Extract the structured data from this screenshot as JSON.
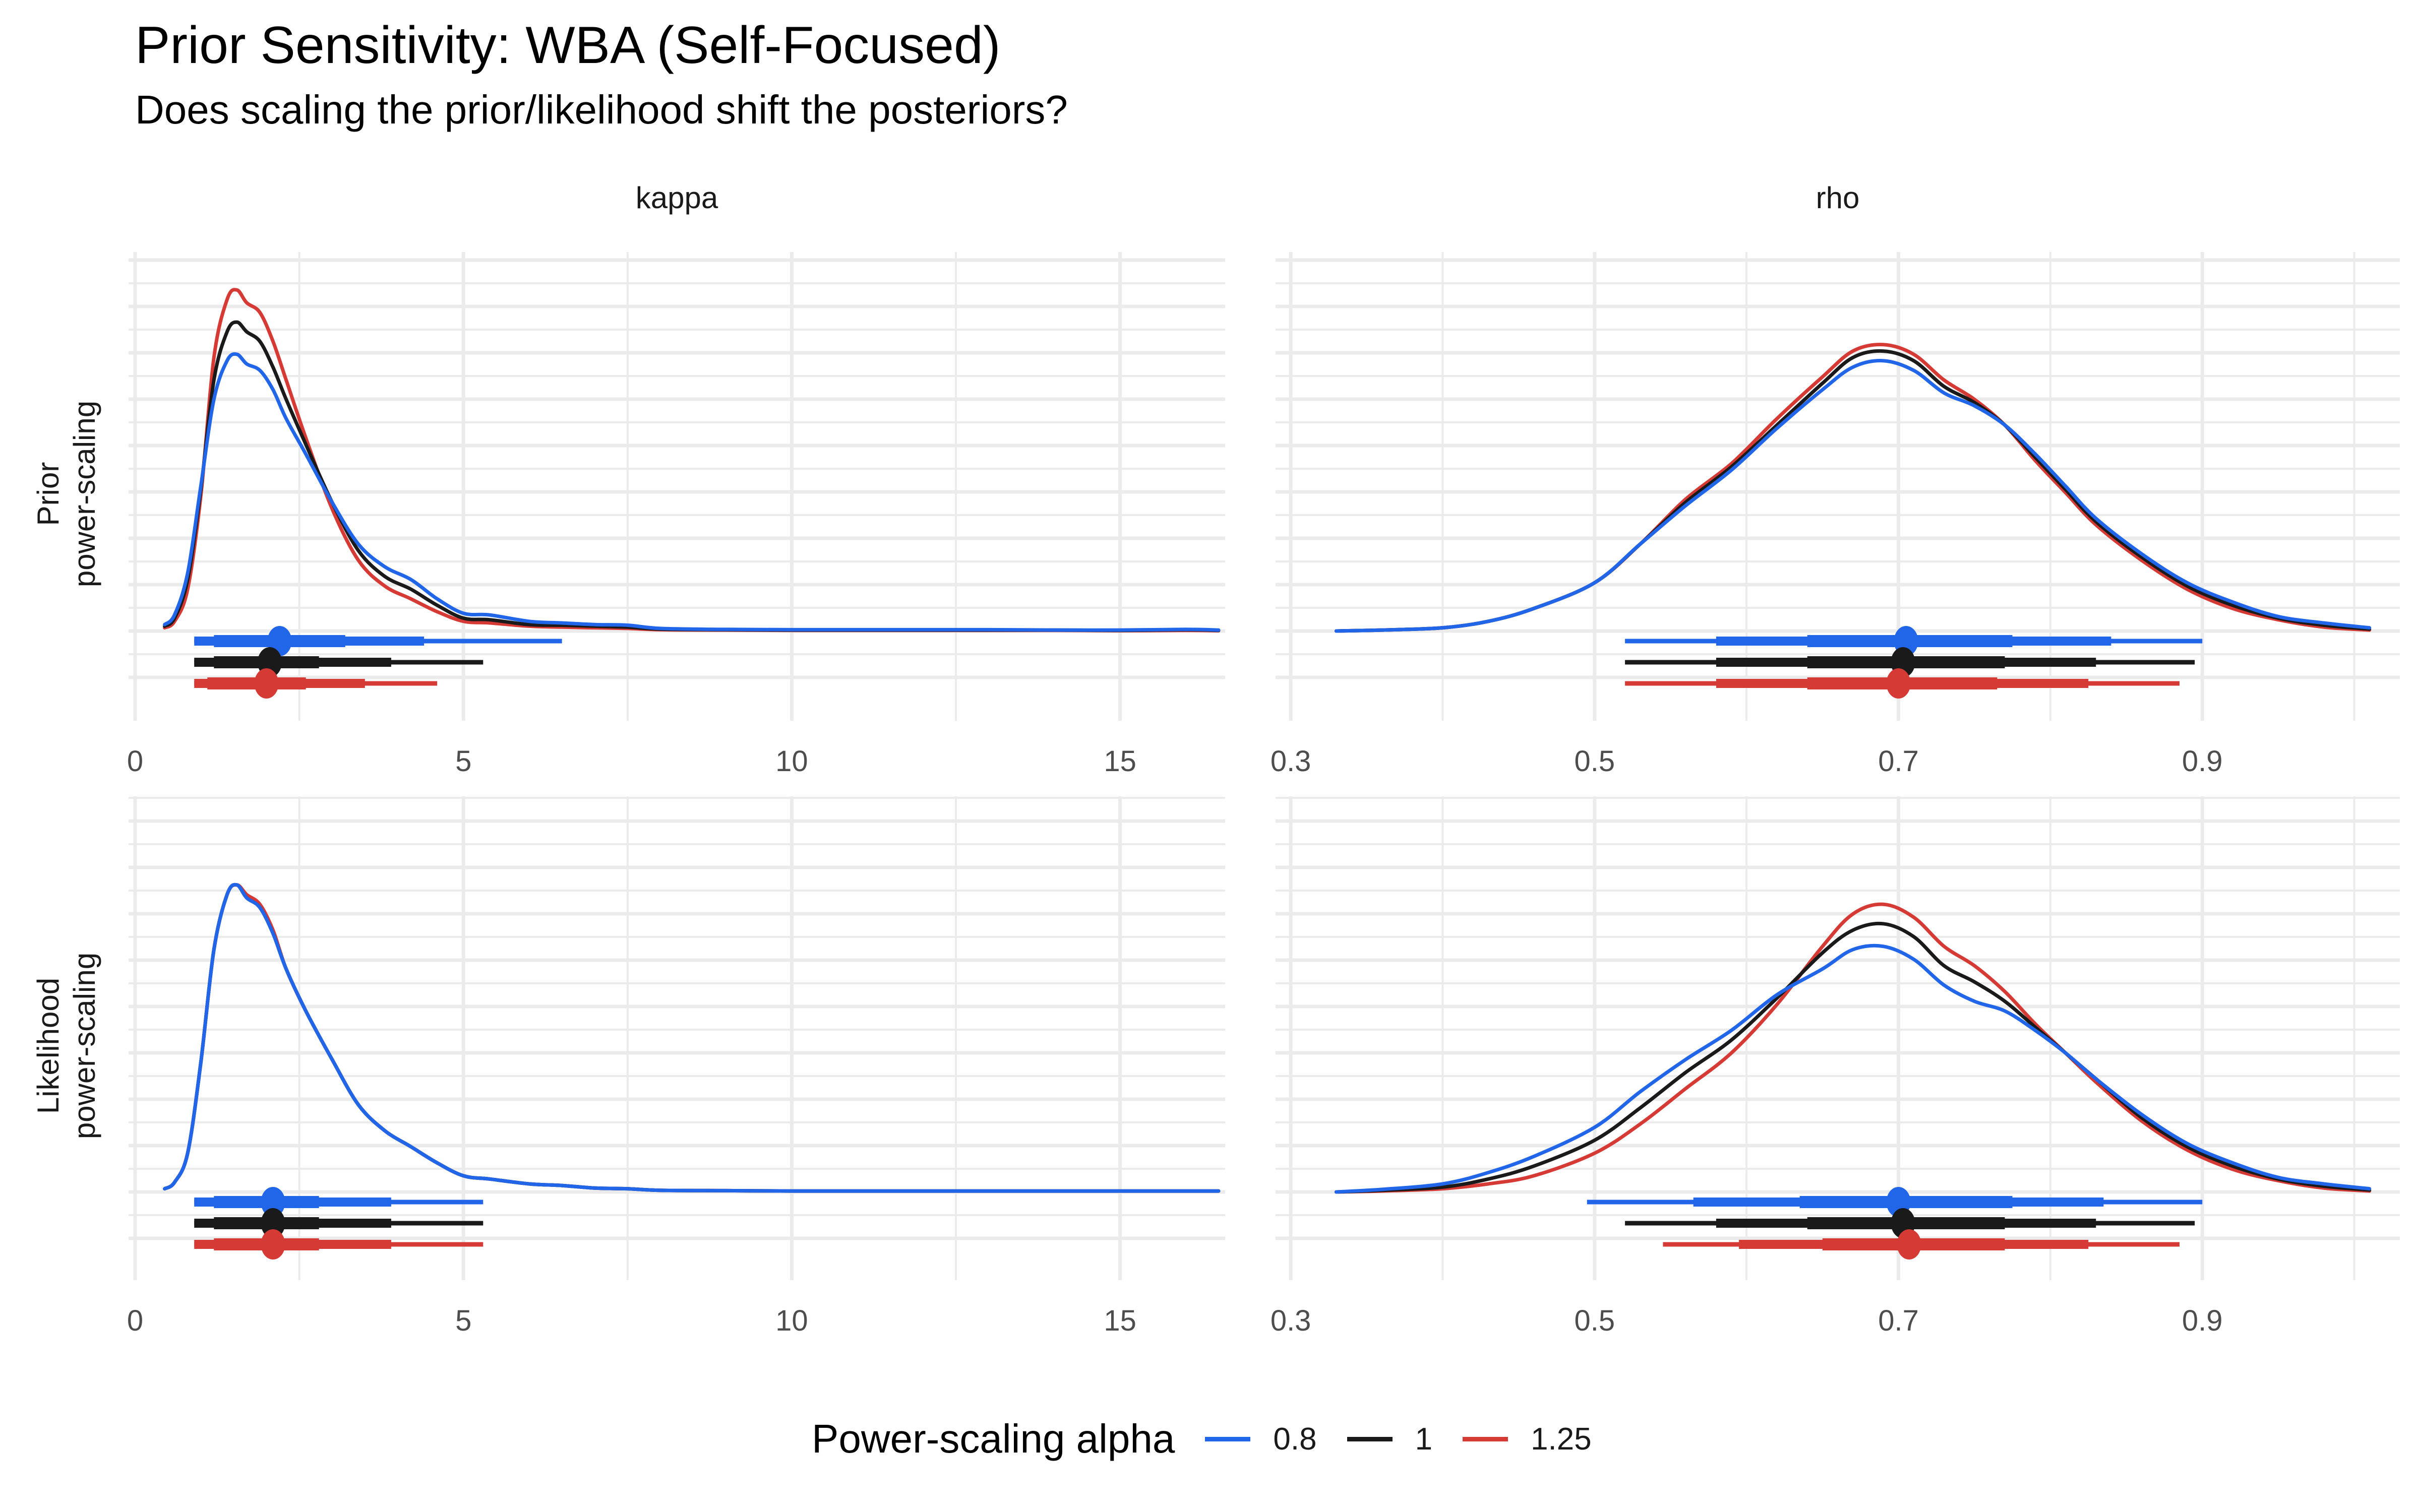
{
  "title": "Prior Sensitivity: WBA (Self-Focused)",
  "subtitle": "Does scaling the prior/likelihood shift the posteriors?",
  "legend": {
    "title": "Power-scaling alpha",
    "items": [
      {
        "label": "0.8",
        "color": "#2166e8"
      },
      {
        "label": "1",
        "color": "#1a1a1a"
      },
      {
        "label": "1.25",
        "color": "#d63a35"
      }
    ]
  },
  "chart_data": {
    "type": "line",
    "layout": "facet-grid 2x2",
    "columns": [
      "kappa",
      "rho"
    ],
    "rows": [
      "Prior\npower-scaling",
      "Likelihood\npower-scaling"
    ],
    "row_labels": [
      [
        "Prior",
        "power-scaling"
      ],
      [
        "Likelihood",
        "power-scaling"
      ]
    ],
    "grid": true,
    "legend_position": "bottom",
    "series_names": [
      "0.8",
      "1",
      "1.25"
    ],
    "series_colors": [
      "#2166e8",
      "#1a1a1a",
      "#d63a35"
    ],
    "axes": {
      "kappa": {
        "xlim": [
          -0.1,
          16.6
        ],
        "ticks": [
          0,
          5,
          10,
          15
        ],
        "tick_labels": [
          "0",
          "5",
          "10",
          "15"
        ]
      },
      "rho": {
        "xlim": [
          0.29,
          1.03
        ],
        "ticks": [
          0.3,
          0.5,
          0.7,
          0.9
        ],
        "tick_labels": [
          "0.3",
          "0.5",
          "0.7",
          "0.9"
        ]
      }
    },
    "panels": [
      {
        "row": "Prior power-scaling",
        "col": "kappa",
        "ymax": 1.0,
        "x": [
          0.45,
          0.6,
          0.8,
          1.0,
          1.2,
          1.4,
          1.55,
          1.7,
          1.9,
          2.1,
          2.3,
          2.6,
          3.0,
          3.4,
          3.8,
          4.2,
          4.6,
          5.0,
          5.4,
          6.0,
          6.5,
          7.0,
          7.5,
          8.0,
          9.0,
          10,
          11,
          12,
          13,
          14,
          15,
          16,
          16.5
        ],
        "series": [
          {
            "name": "0.8",
            "values": [
              0.02,
              0.05,
              0.18,
              0.45,
              0.72,
              0.84,
              0.86,
              0.83,
              0.81,
              0.75,
              0.66,
              0.55,
              0.4,
              0.27,
              0.2,
              0.16,
              0.1,
              0.055,
              0.05,
              0.03,
              0.025,
              0.02,
              0.018,
              0.008,
              0.005,
              0.004,
              0.004,
              0.004,
              0.004,
              0.003,
              0.003,
              0.005,
              0.003
            ]
          },
          {
            "name": "1",
            "values": [
              0.015,
              0.04,
              0.16,
              0.44,
              0.78,
              0.93,
              0.96,
              0.93,
              0.9,
              0.82,
              0.72,
              0.58,
              0.4,
              0.25,
              0.17,
              0.13,
              0.08,
              0.04,
              0.035,
              0.02,
              0.018,
              0.015,
              0.012,
              0.006,
              0.004,
              0.003,
              0.003,
              0.003,
              0.003,
              0.003,
              0.002,
              0.004,
              0.002
            ]
          },
          {
            "name": "1.25",
            "values": [
              0.01,
              0.03,
              0.13,
              0.42,
              0.85,
              1.03,
              1.06,
              1.02,
              0.99,
              0.9,
              0.78,
              0.6,
              0.38,
              0.22,
              0.14,
              0.1,
              0.06,
              0.03,
              0.025,
              0.015,
              0.012,
              0.01,
              0.008,
              0.004,
              0.003,
              0.002,
              0.002,
              0.002,
              0.002,
              0.002,
              0.001,
              0.002,
              0.001
            ]
          }
        ],
        "intervals": [
          {
            "name": "0.8",
            "median": 2.2,
            "inner": [
              1.2,
              3.2
            ],
            "mid": [
              0.9,
              4.4
            ],
            "outer": [
              0.9,
              6.5
            ]
          },
          {
            "name": "1",
            "median": 2.05,
            "inner": [
              1.2,
              2.8
            ],
            "mid": [
              0.9,
              3.9
            ],
            "outer": [
              0.9,
              5.3
            ]
          },
          {
            "name": "1.25",
            "median": 2.0,
            "inner": [
              1.1,
              2.6
            ],
            "mid": [
              0.9,
              3.5
            ],
            "outer": [
              0.9,
              4.6
            ]
          }
        ]
      },
      {
        "row": "Prior power-scaling",
        "col": "rho",
        "ymax": 1.0,
        "x": [
          0.33,
          0.36,
          0.4,
          0.43,
          0.46,
          0.5,
          0.53,
          0.56,
          0.59,
          0.62,
          0.65,
          0.67,
          0.69,
          0.71,
          0.73,
          0.75,
          0.77,
          0.79,
          0.81,
          0.83,
          0.86,
          0.89,
          0.92,
          0.95,
          0.98,
          1.01
        ],
        "series": [
          {
            "name": "0.8",
            "values": [
              0.0,
              0.003,
              0.01,
              0.03,
              0.07,
              0.15,
              0.27,
              0.39,
              0.5,
              0.63,
              0.75,
              0.82,
              0.84,
              0.81,
              0.74,
              0.7,
              0.64,
              0.55,
              0.45,
              0.35,
              0.24,
              0.15,
              0.09,
              0.045,
              0.025,
              0.01
            ]
          },
          {
            "name": "1",
            "values": [
              0.0,
              0.003,
              0.01,
              0.03,
              0.07,
              0.15,
              0.27,
              0.4,
              0.51,
              0.64,
              0.77,
              0.85,
              0.87,
              0.84,
              0.76,
              0.71,
              0.64,
              0.54,
              0.44,
              0.34,
              0.23,
              0.14,
              0.08,
              0.04,
              0.018,
              0.006
            ]
          },
          {
            "name": "1.25",
            "values": [
              0.0,
              0.003,
              0.01,
              0.03,
              0.07,
              0.15,
              0.27,
              0.41,
              0.52,
              0.66,
              0.79,
              0.87,
              0.89,
              0.86,
              0.78,
              0.72,
              0.64,
              0.53,
              0.43,
              0.33,
              0.22,
              0.13,
              0.07,
              0.035,
              0.012,
              0.003
            ]
          }
        ],
        "intervals": [
          {
            "name": "0.8",
            "median": 0.705,
            "inner": [
              0.64,
              0.775
            ],
            "mid": [
              0.58,
              0.84
            ],
            "outer": [
              0.52,
              0.9
            ]
          },
          {
            "name": "1",
            "median": 0.703,
            "inner": [
              0.64,
              0.77
            ],
            "mid": [
              0.58,
              0.83
            ],
            "outer": [
              0.52,
              0.895
            ]
          },
          {
            "name": "1.25",
            "median": 0.7,
            "inner": [
              0.64,
              0.765
            ],
            "mid": [
              0.58,
              0.825
            ],
            "outer": [
              0.52,
              0.885
            ]
          }
        ]
      },
      {
        "row": "Likelihood power-scaling",
        "col": "kappa",
        "ymax": 1.0,
        "x": [
          0.45,
          0.6,
          0.8,
          1.0,
          1.2,
          1.4,
          1.55,
          1.7,
          1.9,
          2.1,
          2.3,
          2.6,
          3.0,
          3.4,
          3.8,
          4.2,
          4.6,
          5.0,
          5.4,
          6.0,
          6.5,
          7.0,
          7.5,
          8.0,
          9.0,
          10,
          11,
          12,
          13,
          14,
          15,
          16,
          16.5
        ],
        "series": [
          {
            "name": "0.8",
            "values": [
              0.01,
              0.03,
              0.12,
              0.4,
              0.75,
              0.92,
              0.95,
              0.91,
              0.88,
              0.8,
              0.69,
              0.56,
              0.41,
              0.27,
              0.19,
              0.14,
              0.09,
              0.05,
              0.04,
              0.025,
              0.02,
              0.012,
              0.01,
              0.005,
              0.004,
              0.003,
              0.003,
              0.003,
              0.003,
              0.003,
              0.003,
              0.003,
              0.003
            ]
          },
          {
            "name": "1",
            "values": [
              0.01,
              0.03,
              0.12,
              0.4,
              0.75,
              0.92,
              0.95,
              0.91,
              0.88,
              0.8,
              0.69,
              0.56,
              0.41,
              0.27,
              0.19,
              0.14,
              0.09,
              0.05,
              0.04,
              0.025,
              0.02,
              0.012,
              0.01,
              0.005,
              0.004,
              0.003,
              0.003,
              0.003,
              0.003,
              0.003,
              0.003,
              0.003,
              0.003
            ]
          },
          {
            "name": "1.25",
            "values": [
              0.01,
              0.03,
              0.12,
              0.4,
              0.75,
              0.92,
              0.95,
              0.92,
              0.89,
              0.81,
              0.69,
              0.56,
              0.41,
              0.27,
              0.19,
              0.14,
              0.09,
              0.05,
              0.04,
              0.025,
              0.02,
              0.012,
              0.01,
              0.005,
              0.004,
              0.003,
              0.003,
              0.003,
              0.003,
              0.003,
              0.003,
              0.003,
              0.003
            ]
          }
        ],
        "intervals": [
          {
            "name": "0.8",
            "median": 2.1,
            "inner": [
              1.2,
              2.8
            ],
            "mid": [
              0.9,
              3.9
            ],
            "outer": [
              0.9,
              5.3
            ]
          },
          {
            "name": "1",
            "median": 2.1,
            "inner": [
              1.2,
              2.8
            ],
            "mid": [
              0.9,
              3.9
            ],
            "outer": [
              0.9,
              5.3
            ]
          },
          {
            "name": "1.25",
            "median": 2.1,
            "inner": [
              1.2,
              2.8
            ],
            "mid": [
              0.9,
              3.9
            ],
            "outer": [
              0.9,
              5.3
            ]
          }
        ]
      },
      {
        "row": "Likelihood power-scaling",
        "col": "rho",
        "ymax": 1.0,
        "x": [
          0.33,
          0.36,
          0.4,
          0.43,
          0.46,
          0.5,
          0.53,
          0.56,
          0.59,
          0.62,
          0.65,
          0.67,
          0.69,
          0.71,
          0.73,
          0.75,
          0.77,
          0.79,
          0.81,
          0.83,
          0.86,
          0.89,
          0.92,
          0.95,
          0.98,
          1.01
        ],
        "series": [
          {
            "name": "0.8",
            "values": [
              0.0,
              0.008,
              0.025,
              0.06,
              0.11,
              0.2,
              0.31,
              0.41,
              0.5,
              0.61,
              0.69,
              0.75,
              0.76,
              0.72,
              0.64,
              0.59,
              0.56,
              0.5,
              0.43,
              0.35,
              0.24,
              0.15,
              0.09,
              0.045,
              0.025,
              0.01
            ]
          },
          {
            "name": "1",
            "values": [
              0.0,
              0.005,
              0.015,
              0.04,
              0.08,
              0.16,
              0.26,
              0.37,
              0.47,
              0.6,
              0.74,
              0.81,
              0.83,
              0.79,
              0.7,
              0.65,
              0.59,
              0.51,
              0.43,
              0.35,
              0.23,
              0.14,
              0.08,
              0.04,
              0.018,
              0.006
            ]
          },
          {
            "name": "1.25",
            "values": [
              0.0,
              0.003,
              0.01,
              0.025,
              0.05,
              0.12,
              0.21,
              0.32,
              0.43,
              0.58,
              0.76,
              0.86,
              0.89,
              0.85,
              0.76,
              0.7,
              0.62,
              0.52,
              0.43,
              0.34,
              0.22,
              0.13,
              0.07,
              0.035,
              0.012,
              0.003
            ]
          }
        ],
        "intervals": [
          {
            "name": "0.8",
            "median": 0.7,
            "inner": [
              0.635,
              0.775
            ],
            "mid": [
              0.565,
              0.835
            ],
            "outer": [
              0.495,
              0.9
            ]
          },
          {
            "name": "1",
            "median": 0.703,
            "inner": [
              0.64,
              0.77
            ],
            "mid": [
              0.58,
              0.83
            ],
            "outer": [
              0.52,
              0.895
            ]
          },
          {
            "name": "1.25",
            "median": 0.707,
            "inner": [
              0.65,
              0.77
            ],
            "mid": [
              0.595,
              0.825
            ],
            "outer": [
              0.545,
              0.885
            ]
          }
        ]
      }
    ]
  }
}
